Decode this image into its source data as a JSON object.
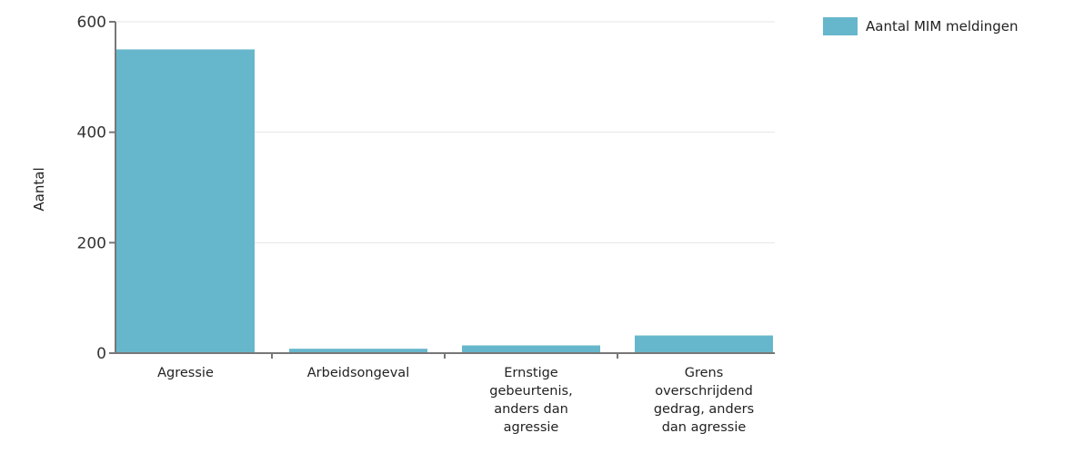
{
  "chart_data": {
    "type": "bar",
    "categories": [
      [
        "Agressie"
      ],
      [
        "Arbeidsongeval"
      ],
      [
        "Ernstige",
        "gebeurtenis,",
        "anders dan",
        "agressie"
      ],
      [
        "Grens",
        "overschrijdend",
        "gedrag, anders",
        "dan agressie"
      ]
    ],
    "series": [
      {
        "name": "Aantal MIM meldingen",
        "values": [
          550,
          8,
          14,
          32
        ]
      }
    ],
    "xlabel": "",
    "ylabel": "Aantal",
    "ylim": [
      0,
      600
    ],
    "yticks": [
      0,
      200,
      400,
      600
    ],
    "grid": true,
    "legend_position": "top-right",
    "colors": {
      "bar": "#67b7cc",
      "axis": "#777777",
      "grid": "#e4e4e4"
    }
  }
}
